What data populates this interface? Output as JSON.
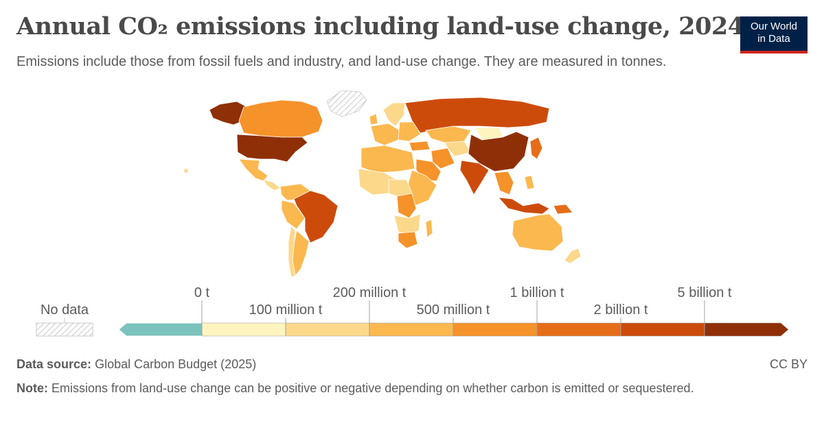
{
  "title": "Annual CO₂ emissions including land-use change, 2024",
  "subtitle": "Emissions include those from fossil fuels and industry, and land-use change. They are measured in tonnes.",
  "logo": {
    "line1": "Our World",
    "line2": "in Data"
  },
  "colors": {
    "negative": "#7cc3bd",
    "bins": [
      "#fef4c0",
      "#fcd88b",
      "#fbb84f",
      "#f5922a",
      "#e56d19",
      "#cc4b0b",
      "#8f2f07"
    ],
    "no_data_stroke": "#c8c8c8"
  },
  "legend": {
    "no_data_label": "No data",
    "labels_top": [
      "0 t",
      "200 million t",
      "1 billion t",
      "5 billion t"
    ],
    "labels_bottom": [
      "100 million t",
      "500 million t",
      "2 billion t"
    ]
  },
  "map_data": {
    "type": "choropleth",
    "regions": [
      {
        "name": "United States",
        "bin": 6
      },
      {
        "name": "China",
        "bin": 6
      },
      {
        "name": "Alaska",
        "bin": 6
      },
      {
        "name": "Russia",
        "bin": 5
      },
      {
        "name": "India",
        "bin": 5
      },
      {
        "name": "Brazil",
        "bin": 5
      },
      {
        "name": "Indonesia",
        "bin": 5
      },
      {
        "name": "Canada",
        "bin": 3
      },
      {
        "name": "Mexico",
        "bin": 2
      },
      {
        "name": "Australia",
        "bin": 2
      },
      {
        "name": "Kazakhstan",
        "bin": 2
      },
      {
        "name": "Iran",
        "bin": 3
      },
      {
        "name": "Saudi Arabia",
        "bin": 3
      },
      {
        "name": "DR Congo",
        "bin": 3
      },
      {
        "name": "South Africa",
        "bin": 3
      },
      {
        "name": "Argentina",
        "bin": 2
      },
      {
        "name": "Mongolia",
        "bin": 0
      },
      {
        "name": "Greenland",
        "bin": null
      }
    ]
  },
  "footer": {
    "source_label": "Data source:",
    "source_text": "Global Carbon Budget (2025)",
    "note_label": "Note:",
    "note_text": "Emissions from land-use change can be positive or negative depending on whether carbon is emitted or sequestered.",
    "license": "CC BY"
  }
}
